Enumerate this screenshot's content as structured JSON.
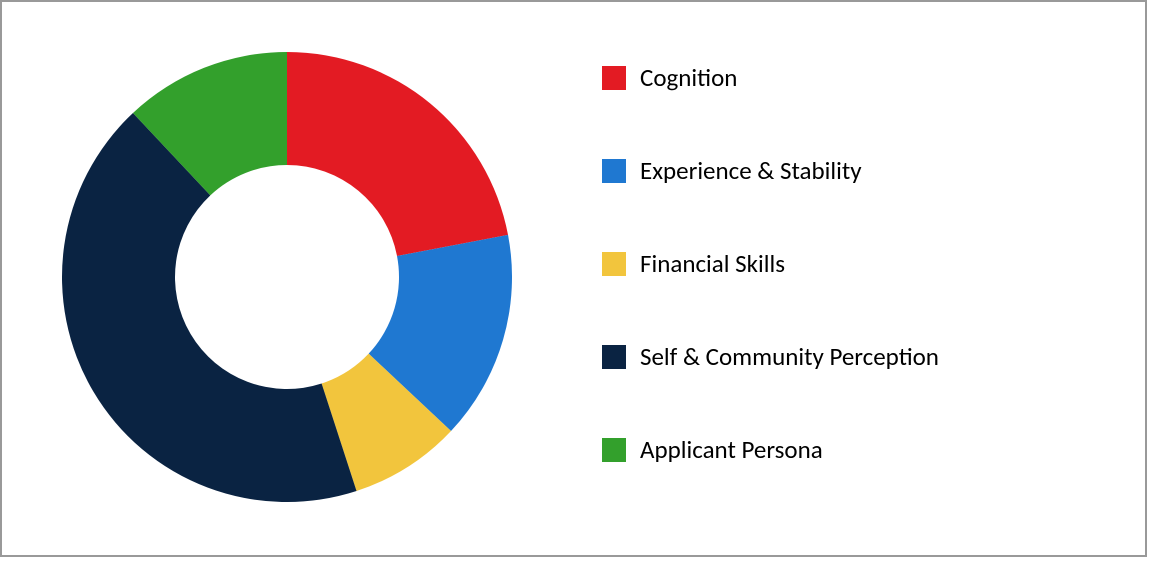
{
  "chart": {
    "type": "donut",
    "background_color": "#ffffff",
    "border_color": "#999999",
    "outer_radius": 225,
    "inner_radius": 112,
    "start_angle_deg": 0,
    "slices": [
      {
        "label": "Cognition",
        "value": 22,
        "color": "#e31b23"
      },
      {
        "label": "Experience & Stability",
        "value": 15,
        "color": "#1f78d1"
      },
      {
        "label": "Financial Skills",
        "value": 8,
        "color": "#f2c53d"
      },
      {
        "label": "Self & Community Perception",
        "value": 43,
        "color": "#0a2342"
      },
      {
        "label": "Applicant Persona",
        "value": 12,
        "color": "#33a02c"
      }
    ],
    "legend": {
      "font_size": 25,
      "swatch_size": 24,
      "text_color": "#000000"
    }
  }
}
